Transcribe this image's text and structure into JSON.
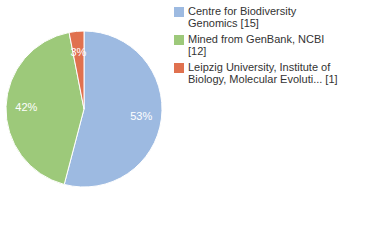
{
  "chart_data": {
    "type": "pie",
    "categories": [
      "Centre for Biodiversity Genomics [15]",
      "Mined from GenBank, NCBI [12]",
      "Leipzig University, Institute of Biology, Molecular Evoluti... [1]"
    ],
    "values": [
      53,
      42,
      3
    ],
    "value_labels": [
      "53%",
      "42%",
      "3%"
    ],
    "colors": [
      "#9dbae1",
      "#9dc97a",
      "#e0714f"
    ],
    "data_labels": true,
    "legend": "top-right"
  }
}
